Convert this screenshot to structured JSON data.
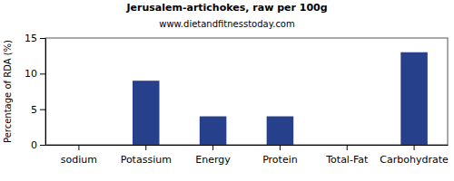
{
  "chart_data": {
    "type": "bar",
    "title": "Jerusalem-artichokes, raw per 100g",
    "subtitle": "www.dietandfitnesstoday.com",
    "y_label": "Percentage of RDA (%)",
    "categories": [
      "sodium",
      "Potassium",
      "Energy",
      "Protein",
      "Total-Fat",
      "Carbohydrate"
    ],
    "values": [
      0,
      9,
      4,
      4,
      0,
      13
    ],
    "color": "#27408b",
    "ylim": [
      0,
      15
    ],
    "yticks": [
      0,
      5,
      10,
      15
    ],
    "grid": false
  }
}
